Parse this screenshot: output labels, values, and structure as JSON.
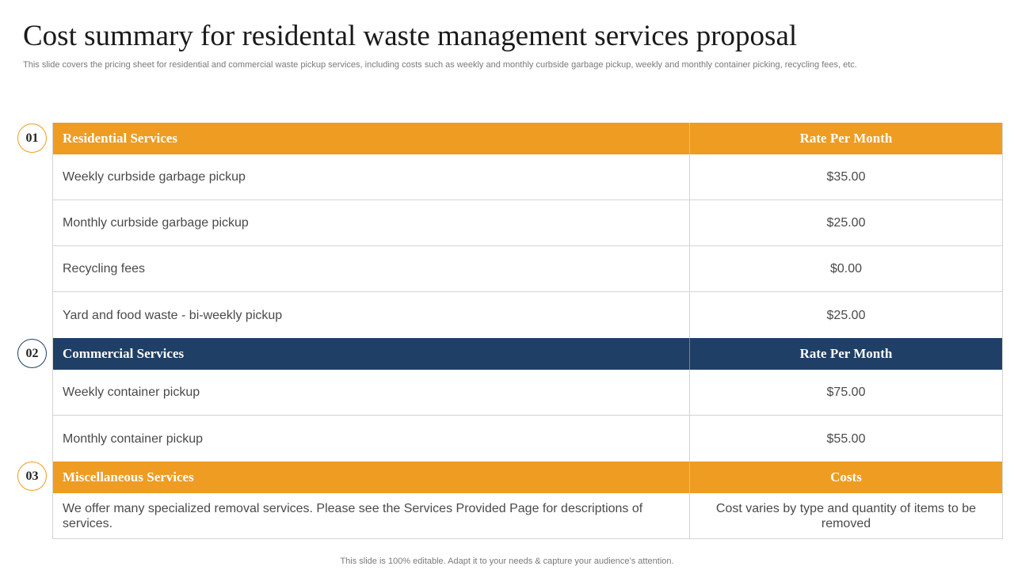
{
  "title": "Cost summary for residental waste management services proposal",
  "subtitle": "This slide covers the pricing sheet for residential and commercial waste pickup services, including costs such as weekly and monthly curbside garbage pickup, weekly and monthly container picking, recycling fees, etc.",
  "sections": [
    {
      "number": "01",
      "header": "Residential Services",
      "rate_header": "Rate Per Month",
      "color": "#ee9c22",
      "rows": [
        {
          "service": "Weekly curbside garbage pickup",
          "rate": "$35.00"
        },
        {
          "service": "Monthly  curbside garbage pickup",
          "rate": "$25.00"
        },
        {
          "service": "Recycling fees",
          "rate": "$0.00"
        },
        {
          "service": "Yard and food waste - bi-weekly pickup",
          "rate": "$25.00"
        }
      ]
    },
    {
      "number": "02",
      "header": "Commercial Services",
      "rate_header": "Rate Per Month",
      "color": "#1f3f66",
      "rows": [
        {
          "service": "Weekly container pickup",
          "rate": "$75.00"
        },
        {
          "service": "Monthly  container pickup",
          "rate": "$55.00"
        }
      ]
    },
    {
      "number": "03",
      "header": "Miscellaneous Services",
      "rate_header": "Costs",
      "color": "#ee9c22",
      "rows": [
        {
          "service": "We offer many specialized removal services. Please see the Services Provided Page for descriptions of services.",
          "rate": "Cost varies by type and quantity  of items to be removed"
        }
      ]
    }
  ],
  "footer": "This slide is 100% editable. Adapt it to your needs & capture your audience’s attention."
}
